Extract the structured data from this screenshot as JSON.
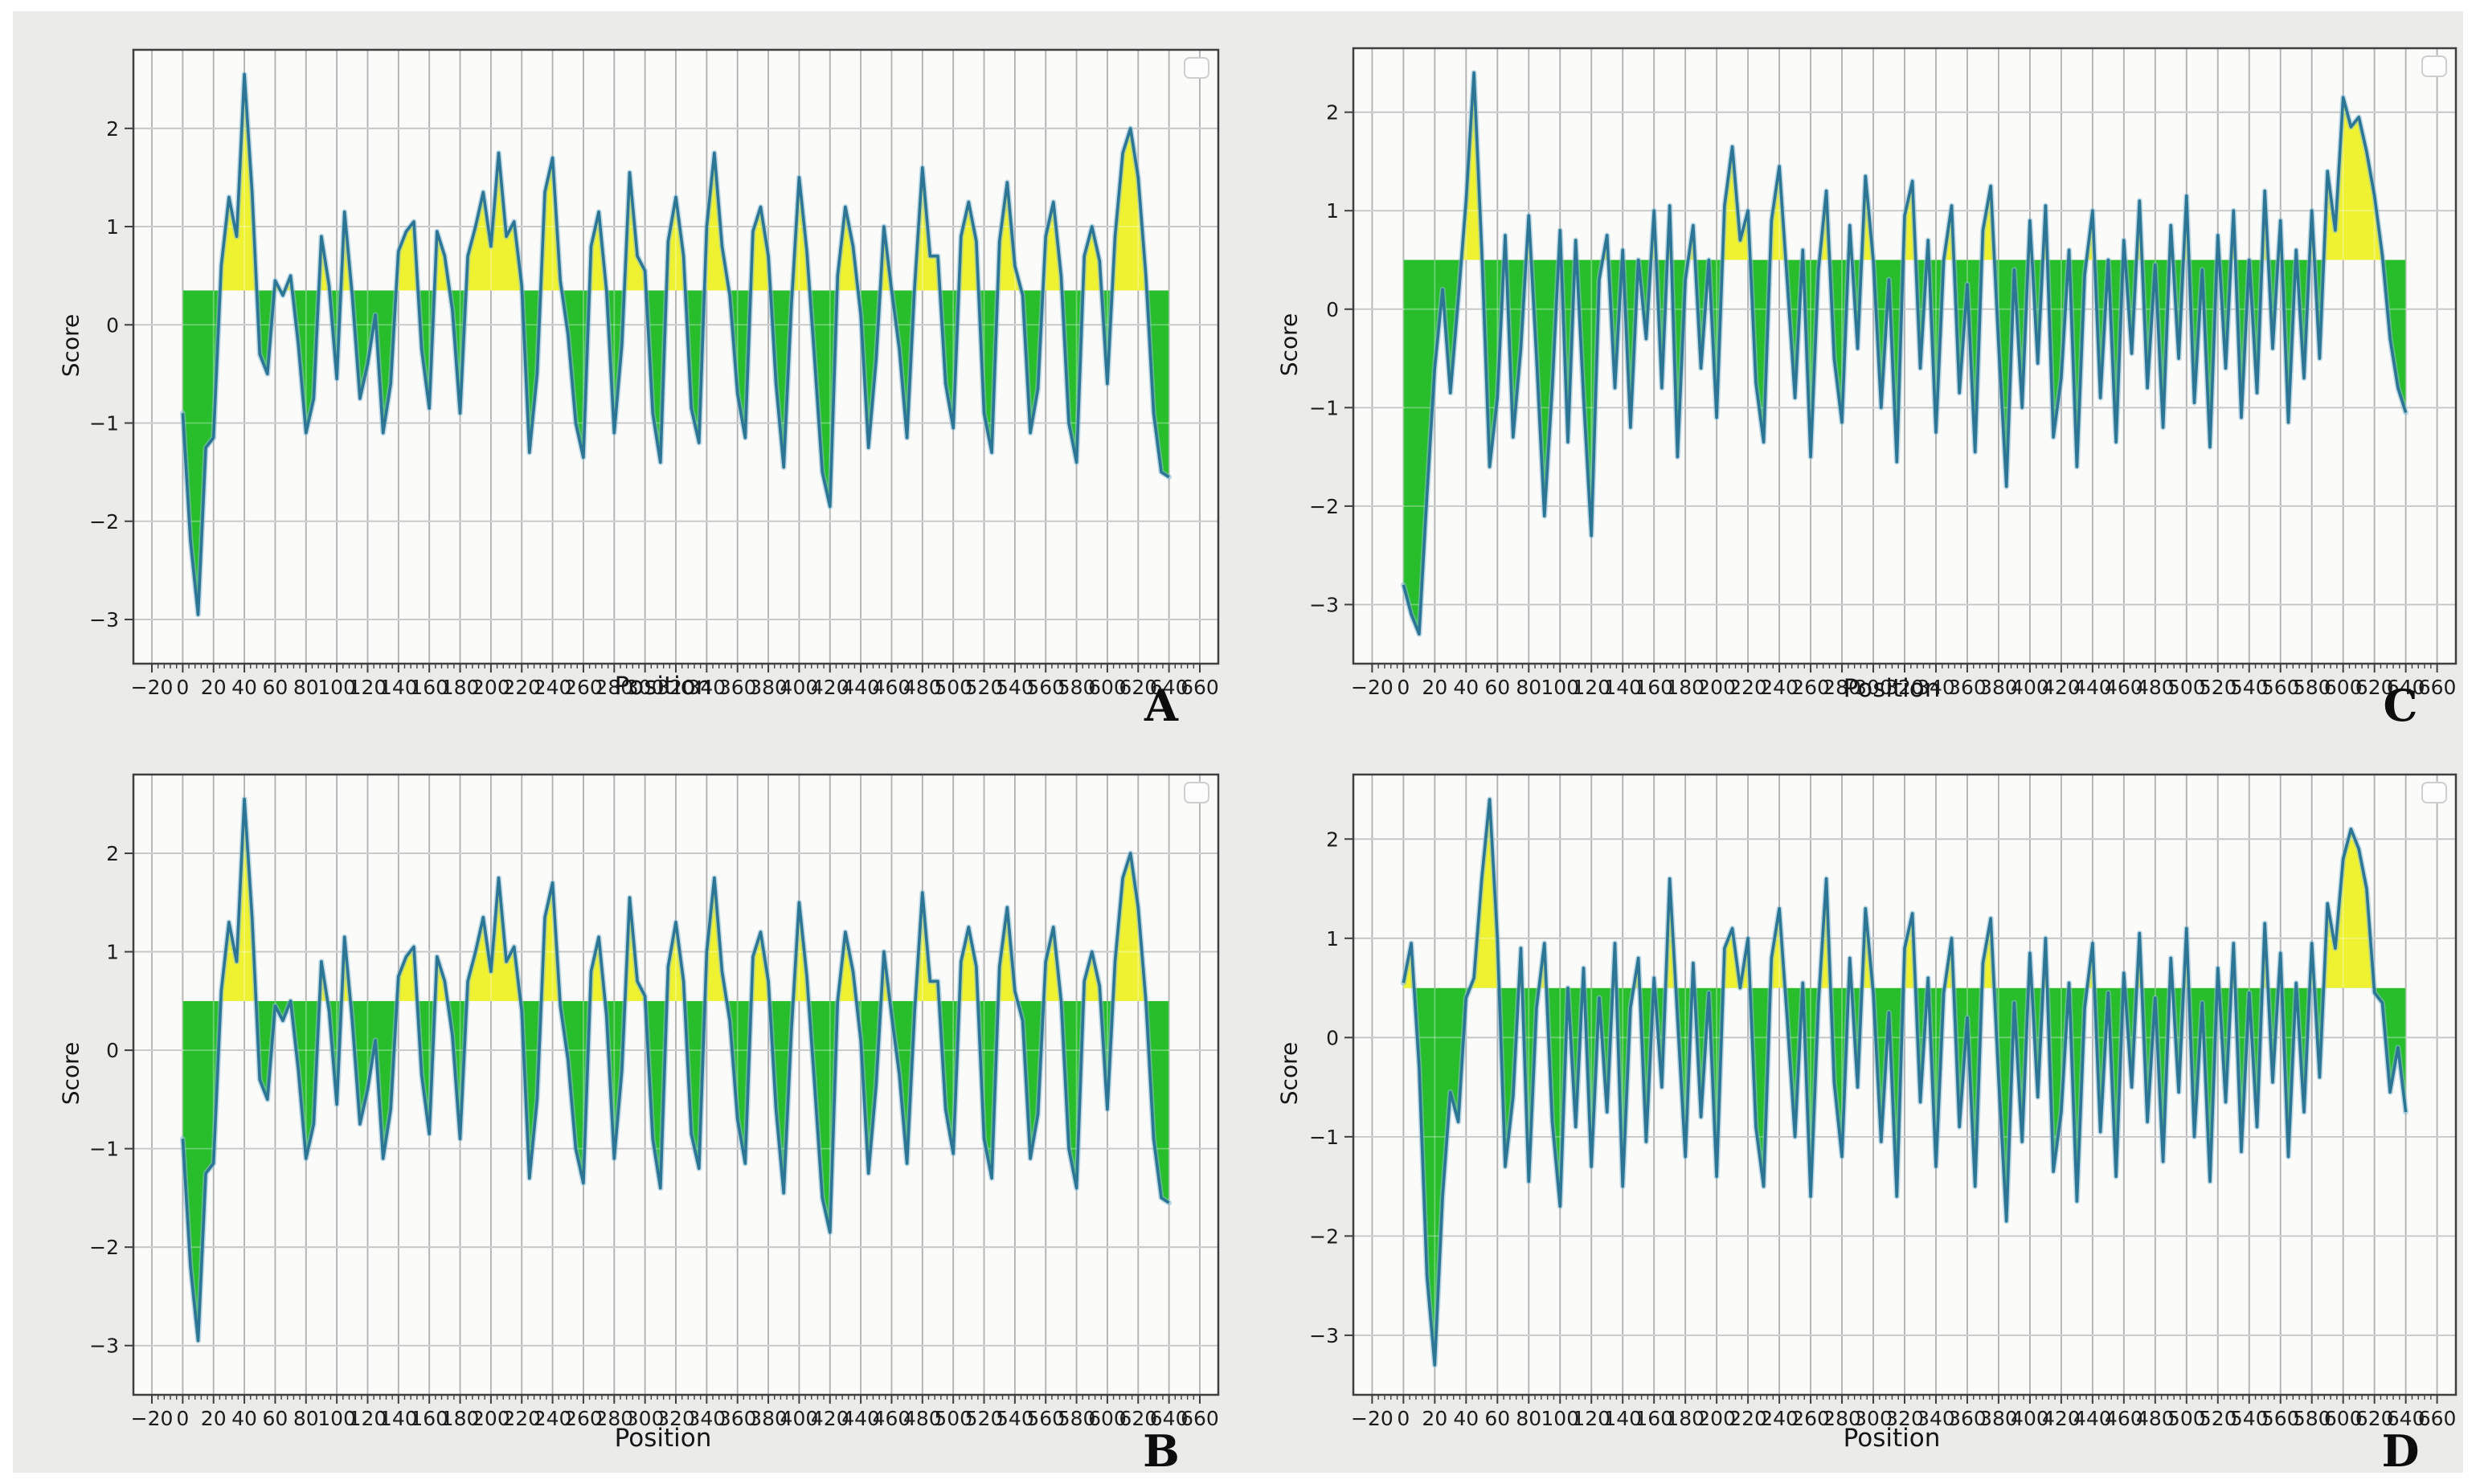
{
  "figure": {
    "background": "#ebece9",
    "page_background": "#ffffff",
    "colors": {
      "line": "#2d7595",
      "line_halo": "#8abdd4",
      "fill_above_threshold": "#eef231",
      "fill_below_threshold": "#27bd2b",
      "plot_background": "#fbfbfa",
      "grid_x": "#8f8f8f",
      "grid_y": "#ababab",
      "spine": "#3f3f3f",
      "tick_text": "#1c1c1c",
      "legend_border": "#cfcfcf",
      "legend_fill": "#fdfdfd"
    }
  },
  "chart_data": [
    {
      "panel": "A",
      "type": "area",
      "xlabel": "Position",
      "ylabel": "Score",
      "panel_label": "A",
      "legend": "empty",
      "threshold": 0.35,
      "x_start": 0,
      "x_step": 5,
      "xlim": [
        -32,
        672
      ],
      "ylim": [
        -3.45,
        2.8
      ],
      "xticks": {
        "min": -20,
        "max": 660,
        "step": 20,
        "minor_step": 4
      },
      "yticks": [
        -3,
        -2,
        -1,
        0,
        1,
        2
      ],
      "values": [
        -0.9,
        -2.2,
        -2.95,
        -1.25,
        -1.15,
        0.6,
        1.3,
        0.9,
        2.55,
        1.35,
        -0.3,
        -0.5,
        0.45,
        0.3,
        0.5,
        -0.2,
        -1.1,
        -0.75,
        0.9,
        0.4,
        -0.55,
        1.15,
        0.3,
        -0.75,
        -0.4,
        0.1,
        -1.1,
        -0.6,
        0.75,
        0.95,
        1.05,
        -0.25,
        -0.85,
        0.95,
        0.7,
        0.15,
        -0.9,
        0.7,
        1.0,
        1.35,
        0.8,
        1.75,
        0.9,
        1.05,
        0.4,
        -1.3,
        -0.5,
        1.35,
        1.7,
        0.45,
        -0.1,
        -1.0,
        -1.35,
        0.8,
        1.15,
        0.35,
        -1.1,
        -0.2,
        1.55,
        0.7,
        0.55,
        -0.9,
        -1.4,
        0.85,
        1.3,
        0.7,
        -0.85,
        -1.2,
        1.0,
        1.75,
        0.8,
        0.3,
        -0.7,
        -1.15,
        0.95,
        1.2,
        0.7,
        -0.6,
        -1.45,
        0.2,
        1.5,
        0.75,
        -0.35,
        -1.5,
        -1.85,
        0.5,
        1.2,
        0.8,
        0.1,
        -1.25,
        -0.35,
        1.0,
        0.35,
        -0.25,
        -1.15,
        0.4,
        1.6,
        0.7,
        0.7,
        -0.6,
        -1.05,
        0.9,
        1.25,
        0.85,
        -0.9,
        -1.3,
        0.85,
        1.45,
        0.6,
        0.3,
        -1.1,
        -0.65,
        0.9,
        1.25,
        0.5,
        -1.0,
        -1.4,
        0.7,
        1.0,
        0.65,
        -0.6,
        0.9,
        1.75,
        2.0,
        1.5,
        0.5,
        -0.9,
        -1.5,
        -1.55
      ]
    },
    {
      "panel": "B",
      "type": "area",
      "xlabel": "Position",
      "ylabel": "Score",
      "panel_label": "B",
      "legend": "empty",
      "threshold": 0.5,
      "x_start": 0,
      "x_step": 5,
      "xlim": [
        -32,
        672
      ],
      "ylim": [
        -3.5,
        2.8
      ],
      "xticks": {
        "min": -20,
        "max": 660,
        "step": 20,
        "minor_step": 4
      },
      "yticks": [
        -3,
        -2,
        -1,
        0,
        1,
        2
      ],
      "values": [
        -0.9,
        -2.2,
        -2.95,
        -1.25,
        -1.15,
        0.6,
        1.3,
        0.9,
        2.55,
        1.35,
        -0.3,
        -0.5,
        0.45,
        0.3,
        0.5,
        -0.2,
        -1.1,
        -0.75,
        0.9,
        0.4,
        -0.55,
        1.15,
        0.3,
        -0.75,
        -0.4,
        0.1,
        -1.1,
        -0.6,
        0.75,
        0.95,
        1.05,
        -0.25,
        -0.85,
        0.95,
        0.7,
        0.15,
        -0.9,
        0.7,
        1.0,
        1.35,
        0.8,
        1.75,
        0.9,
        1.05,
        0.4,
        -1.3,
        -0.5,
        1.35,
        1.7,
        0.45,
        -0.1,
        -1.0,
        -1.35,
        0.8,
        1.15,
        0.35,
        -1.1,
        -0.2,
        1.55,
        0.7,
        0.55,
        -0.9,
        -1.4,
        0.85,
        1.3,
        0.7,
        -0.85,
        -1.2,
        1.0,
        1.75,
        0.8,
        0.3,
        -0.7,
        -1.15,
        0.95,
        1.2,
        0.7,
        -0.6,
        -1.45,
        0.2,
        1.5,
        0.75,
        -0.35,
        -1.5,
        -1.85,
        0.5,
        1.2,
        0.8,
        0.1,
        -1.25,
        -0.35,
        1.0,
        0.35,
        -0.25,
        -1.15,
        0.4,
        1.6,
        0.7,
        0.7,
        -0.6,
        -1.05,
        0.9,
        1.25,
        0.85,
        -0.9,
        -1.3,
        0.85,
        1.45,
        0.6,
        0.3,
        -1.1,
        -0.65,
        0.9,
        1.25,
        0.5,
        -1.0,
        -1.4,
        0.7,
        1.0,
        0.65,
        -0.6,
        0.9,
        1.75,
        2.0,
        1.45,
        0.5,
        -0.9,
        -1.5,
        -1.55
      ]
    },
    {
      "panel": "C",
      "type": "area",
      "xlabel": "Position",
      "ylabel": "Score",
      "panel_label": "C",
      "legend": "empty",
      "threshold": 0.5,
      "x_start": 0,
      "x_step": 5,
      "xlim": [
        -32,
        672
      ],
      "ylim": [
        -3.6,
        2.65
      ],
      "xticks": {
        "min": -20,
        "max": 660,
        "step": 20,
        "minor_step": 4
      },
      "yticks": [
        -3,
        -2,
        -1,
        0,
        1,
        2
      ],
      "values": [
        -2.8,
        -3.1,
        -3.3,
        -1.9,
        -0.6,
        0.2,
        -0.85,
        0.1,
        1.1,
        2.4,
        0.6,
        -1.6,
        -0.9,
        0.75,
        -1.3,
        -0.4,
        0.95,
        -0.5,
        -2.1,
        -0.8,
        0.8,
        -1.35,
        0.7,
        -0.9,
        -2.3,
        0.3,
        0.75,
        -0.8,
        0.6,
        -1.2,
        0.5,
        -0.3,
        1.0,
        -0.8,
        1.05,
        -1.5,
        0.3,
        0.85,
        -0.6,
        0.5,
        -1.1,
        1.05,
        1.65,
        0.7,
        1.0,
        -0.75,
        -1.35,
        0.9,
        1.45,
        0.3,
        -0.9,
        0.6,
        -1.5,
        0.4,
        1.2,
        -0.5,
        -1.15,
        0.85,
        -0.4,
        1.35,
        0.5,
        -1.0,
        0.3,
        -1.55,
        0.95,
        1.3,
        -0.6,
        0.7,
        -1.25,
        0.5,
        1.05,
        -0.85,
        0.25,
        -1.45,
        0.8,
        1.25,
        -0.35,
        -1.8,
        0.4,
        -1.0,
        0.9,
        -0.55,
        1.05,
        -1.3,
        -0.7,
        0.6,
        -1.6,
        0.35,
        1.0,
        -0.9,
        0.5,
        -1.35,
        0.7,
        -0.45,
        1.1,
        -0.8,
        0.45,
        -1.2,
        0.85,
        -0.5,
        1.15,
        -0.95,
        0.4,
        -1.4,
        0.75,
        -0.6,
        1.0,
        -1.1,
        0.5,
        -0.85,
        1.2,
        -0.4,
        0.9,
        -1.15,
        0.6,
        -0.7,
        1.0,
        -0.5,
        1.4,
        0.8,
        2.15,
        1.85,
        1.95,
        1.6,
        1.15,
        0.55,
        -0.3,
        -0.8,
        -1.05
      ]
    },
    {
      "panel": "D",
      "type": "area",
      "xlabel": "Position",
      "ylabel": "Score",
      "panel_label": "D",
      "legend": "empty",
      "threshold": 0.5,
      "x_start": 0,
      "x_step": 5,
      "xlim": [
        -32,
        672
      ],
      "ylim": [
        -3.6,
        2.65
      ],
      "xticks": {
        "min": -20,
        "max": 660,
        "step": 20,
        "minor_step": 4
      },
      "yticks": [
        -3,
        -2,
        -1,
        0,
        1,
        2
      ],
      "values": [
        0.55,
        0.95,
        -0.3,
        -2.4,
        -3.3,
        -1.6,
        -0.55,
        -0.85,
        0.4,
        0.6,
        1.6,
        2.4,
        1.0,
        -1.3,
        -0.6,
        0.9,
        -1.45,
        0.3,
        0.95,
        -0.85,
        -1.7,
        0.5,
        -0.9,
        0.7,
        -1.3,
        0.4,
        -0.75,
        0.95,
        -1.5,
        0.3,
        0.8,
        -1.05,
        0.6,
        -0.5,
        1.6,
        0.2,
        -1.2,
        0.75,
        -0.8,
        0.45,
        -1.4,
        0.9,
        1.1,
        0.5,
        1.0,
        -0.9,
        -1.5,
        0.8,
        1.3,
        0.2,
        -1.0,
        0.55,
        -1.6,
        0.35,
        1.6,
        -0.45,
        -1.2,
        0.8,
        -0.5,
        1.3,
        0.45,
        -1.05,
        0.25,
        -1.6,
        0.9,
        1.25,
        -0.65,
        0.6,
        -1.3,
        0.45,
        1.0,
        -0.9,
        0.2,
        -1.5,
        0.75,
        1.2,
        -0.4,
        -1.85,
        0.35,
        -1.05,
        0.85,
        -0.6,
        1.0,
        -1.35,
        -0.75,
        0.55,
        -1.65,
        0.3,
        0.95,
        -0.95,
        0.45,
        -1.4,
        0.65,
        -0.5,
        1.05,
        -0.85,
        0.4,
        -1.25,
        0.8,
        -0.55,
        1.1,
        -1.0,
        0.35,
        -1.45,
        0.7,
        -0.65,
        0.95,
        -1.15,
        0.45,
        -0.9,
        1.15,
        -0.45,
        0.85,
        -1.2,
        0.55,
        -0.75,
        0.95,
        -0.4,
        1.35,
        0.9,
        1.8,
        2.1,
        1.9,
        1.5,
        0.45,
        0.35,
        -0.55,
        -0.1,
        -0.75
      ]
    }
  ]
}
